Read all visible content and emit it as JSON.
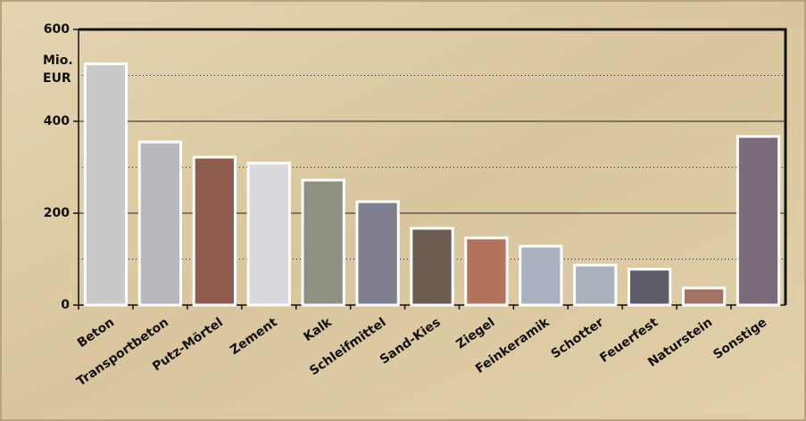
{
  "chart_data": {
    "type": "bar",
    "y_label": [
      "Mio.",
      "EUR"
    ],
    "categories": [
      "Beton",
      "Transportbeton",
      "Putz-Mörtel",
      "Zement",
      "Kalk",
      "Schleifmittel",
      "Sand-Kies",
      "Ziegel",
      "Feinkeramik",
      "Schotter",
      "Feuerfest",
      "Naturstein",
      "Sonstige"
    ],
    "values": [
      525,
      355,
      322,
      309,
      272,
      225,
      167,
      146,
      128,
      87,
      78,
      37,
      367
    ],
    "colors": [
      "#c9c9cb",
      "#b9b9bd",
      "#8e5c4c",
      "#d9d9dd",
      "#8f8f84",
      "#7e7e8e",
      "#6c5c52",
      "#b3725c",
      "#a9b1c1",
      "#a9b1bd",
      "#5c5c68",
      "#a37262",
      "#7c6c7a"
    ],
    "ylim": [
      0,
      600
    ],
    "yticks": [
      0,
      200,
      400,
      600
    ],
    "minor_gridlines": [
      100,
      300,
      500
    ],
    "grid": true
  }
}
